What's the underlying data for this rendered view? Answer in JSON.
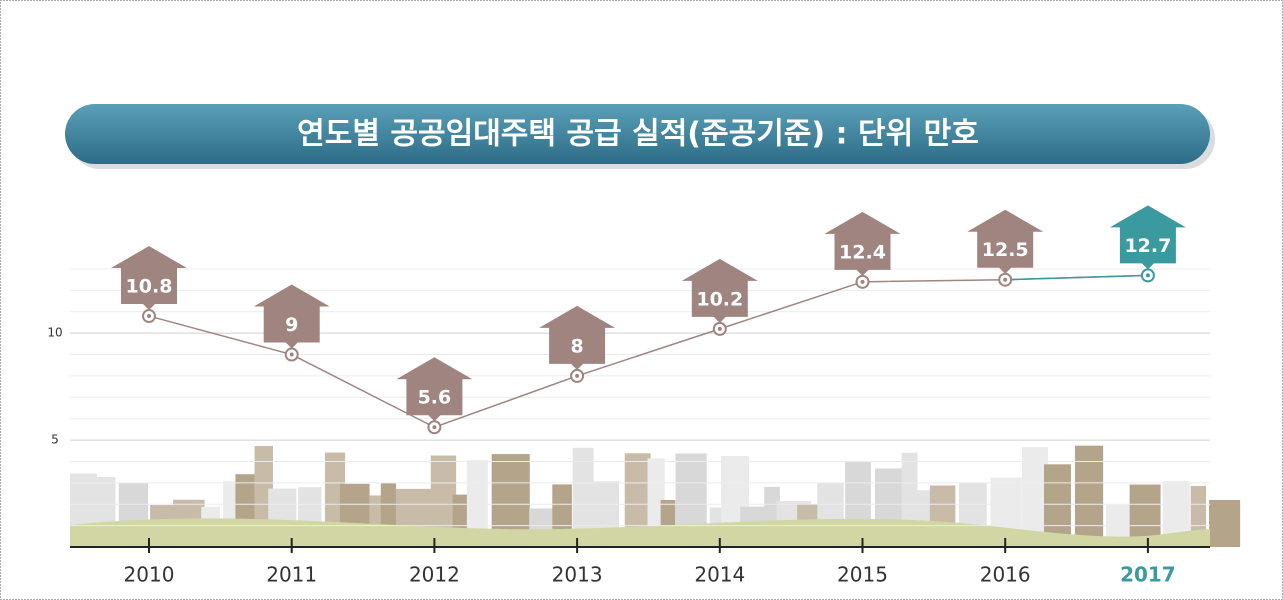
{
  "chart_data": {
    "type": "line",
    "title": "연도별 공공임대주택 공급 실적(준공기준) : 단위 만호",
    "categories": [
      "2010",
      "2011",
      "2012",
      "2013",
      "2014",
      "2015",
      "2016",
      "2017"
    ],
    "series": [
      {
        "color": "#a08480",
        "values": [
          10.8,
          9,
          5.6,
          8,
          10.2,
          12.4,
          12.5,
          12.7
        ],
        "colors": [
          "#a08480",
          "#a08480",
          "#a08480",
          "#a08480",
          "#a08480",
          "#a08480",
          "#a08480",
          "#3a9aa0"
        ]
      }
    ],
    "ylim": [
      0,
      13
    ],
    "yticks": [
      5,
      10
    ],
    "grid": true
  }
}
